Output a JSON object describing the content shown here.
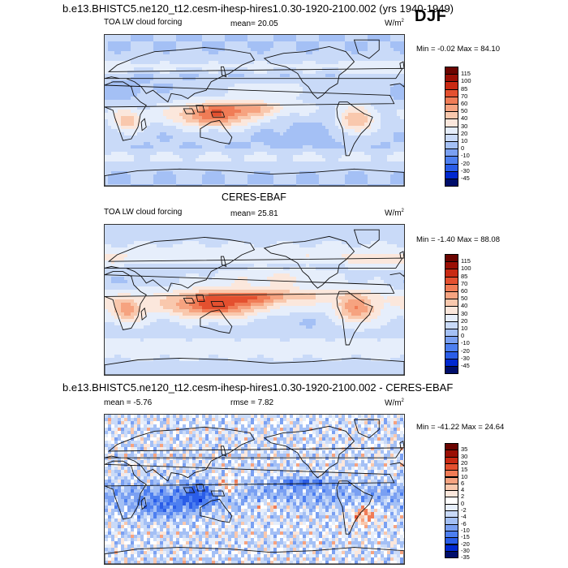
{
  "header": {
    "title": "b.e13.BHISTC5.ne120_t12.cesm-ihesp-hires1.0.30-1920-2100.002 (yrs 1940-1949)",
    "season": "DJF"
  },
  "panel_model": {
    "variable": "TOA LW cloud forcing",
    "mean_label": "mean=",
    "mean_value": "20.05",
    "units": "W/m",
    "units_exp": "2",
    "min_max": "Min =  -0.02 Max =  84.10"
  },
  "ceres_title": "CERES-EBAF",
  "panel_obs": {
    "variable": "TOA LW cloud forcing",
    "mean_label": "mean=",
    "mean_value": "25.81",
    "units": "W/m",
    "units_exp": "2",
    "min_max": "Min =  -1.40 Max =  88.08"
  },
  "diff_title": "b.e13.BHISTC5.ne120_t12.cesm-ihesp-hires1.0.30-1920-2100.002 - CERES-EBAF",
  "panel_diff": {
    "mean_label": "mean =",
    "mean_value": "-5.76",
    "rmse_label": "rmse =",
    "rmse_value": "7.82",
    "units": "W/m",
    "units_exp": "2",
    "min_max": "Min = -41.22 Max =  24.64"
  },
  "colors": {
    "abs": [
      "#000e6b",
      "#0028d0",
      "#2a5de8",
      "#4d7ff0",
      "#7aa0f2",
      "#a4c0f5",
      "#c9daf8",
      "#e6eefb",
      "#fbe7dc",
      "#f9c8ad",
      "#f6a380",
      "#f07c56",
      "#e4502f",
      "#c92a13",
      "#9a0f05",
      "#6b0400"
    ],
    "diff": [
      "#000e6b",
      "#0028d0",
      "#2a5de8",
      "#4d7ff0",
      "#7aa0f2",
      "#a4c0f5",
      "#c9daf8",
      "#e6eefb",
      "#ffffff",
      "#fbe7dc",
      "#f9c8ad",
      "#f6a380",
      "#f07c56",
      "#e4502f",
      "#c92a13",
      "#9a0f05",
      "#6b0400"
    ]
  },
  "chart_data": [
    {
      "type": "heatmap",
      "title": "TOA LW cloud forcing",
      "subtitle": "b.e13.BHISTC5.ne120_t12.cesm-ihesp-hires1.0.30-1920-2100.002 (yrs 1940-1949), DJF",
      "colorbar_levels": [
        "115",
        "100",
        "85",
        "70",
        "60",
        "50",
        "40",
        "30",
        "20",
        "10",
        "0",
        "-10",
        "-20",
        "-30",
        "-45"
      ],
      "mean": 20.05,
      "min": -0.02,
      "max": 84.1,
      "units": "W/m2"
    },
    {
      "type": "heatmap",
      "title": "TOA LW cloud forcing",
      "subtitle": "CERES-EBAF",
      "colorbar_levels": [
        "115",
        "100",
        "85",
        "70",
        "60",
        "50",
        "40",
        "30",
        "20",
        "10",
        "0",
        "-10",
        "-20",
        "-30",
        "-45"
      ],
      "mean": 25.81,
      "min": -1.4,
      "max": 88.08,
      "units": "W/m2"
    },
    {
      "type": "heatmap",
      "title": "b.e13.BHISTC5.ne120_t12.cesm-ihesp-hires1.0.30-1920-2100.002 - CERES-EBAF",
      "colorbar_levels": [
        "35",
        "30",
        "20",
        "15",
        "10",
        "6",
        "4",
        "2",
        "0",
        "-2",
        "-4",
        "-6",
        "-10",
        "-15",
        "-20",
        "-30",
        "-35"
      ],
      "mean": -5.76,
      "rmse": 7.82,
      "min": -41.22,
      "max": 24.64,
      "units": "W/m2"
    }
  ]
}
